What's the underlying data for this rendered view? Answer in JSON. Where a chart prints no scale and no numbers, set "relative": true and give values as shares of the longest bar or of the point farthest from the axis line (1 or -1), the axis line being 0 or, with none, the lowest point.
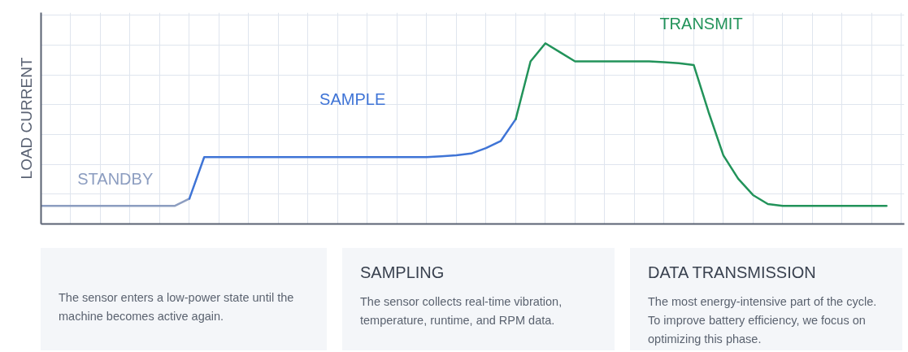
{
  "chart_data": {
    "type": "line",
    "relative": true,
    "ylabel": "LOAD CURRENT",
    "grid": true,
    "categories": [
      null,
      null,
      null,
      null,
      null,
      null,
      null,
      null,
      null,
      null,
      null,
      null,
      null,
      null,
      null,
      null,
      null,
      null,
      null,
      null,
      null,
      null,
      null,
      null,
      null,
      null,
      null,
      null,
      null,
      null,
      null,
      null,
      null,
      null,
      null,
      null,
      null,
      null,
      null,
      null,
      null,
      null,
      null,
      null,
      null,
      null,
      null,
      null,
      null,
      null,
      null,
      null,
      null,
      null,
      null,
      null,
      null,
      null
    ],
    "series": [
      {
        "name": "STANDBY",
        "color": "#8c9dc0",
        "values": [
          0.1,
          0.1,
          0.1,
          0.1,
          0.1,
          0.1,
          0.1,
          0.1,
          0.1,
          0.1,
          0.14,
          null,
          null,
          null,
          null,
          null,
          null,
          null,
          null,
          null,
          null,
          null,
          null,
          null,
          null,
          null,
          null,
          null,
          null,
          null,
          null,
          null,
          null,
          null,
          null,
          null,
          null,
          null,
          null,
          null,
          null,
          null,
          null,
          null,
          null,
          null,
          null,
          null,
          null,
          null,
          null,
          null,
          null,
          null,
          null,
          null,
          null,
          null
        ]
      },
      {
        "name": "SAMPLE",
        "color": "#3f74d6",
        "values": [
          null,
          null,
          null,
          null,
          null,
          null,
          null,
          null,
          null,
          null,
          0.14,
          0.37,
          0.37,
          0.37,
          0.37,
          0.37,
          0.37,
          0.37,
          0.37,
          0.37,
          0.37,
          0.37,
          0.37,
          0.37,
          0.37,
          0.37,
          0.37,
          0.375,
          0.38,
          0.39,
          0.42,
          0.46,
          0.58,
          null,
          null,
          null,
          null,
          null,
          null,
          null,
          null,
          null,
          null,
          null,
          null,
          null,
          null,
          null,
          null,
          null,
          null,
          null,
          null,
          null,
          null,
          null,
          null,
          null
        ]
      },
      {
        "name": "TRANSMIT",
        "color": "#22935a",
        "values": [
          null,
          null,
          null,
          null,
          null,
          null,
          null,
          null,
          null,
          null,
          null,
          null,
          null,
          null,
          null,
          null,
          null,
          null,
          null,
          null,
          null,
          null,
          null,
          null,
          null,
          null,
          null,
          null,
          null,
          null,
          null,
          null,
          0.58,
          0.9,
          1.0,
          0.95,
          0.9,
          0.9,
          0.9,
          0.9,
          0.9,
          0.9,
          0.895,
          0.89,
          0.88,
          0.62,
          0.38,
          0.25,
          0.16,
          0.11,
          0.1,
          0.1,
          0.1,
          0.1,
          0.1,
          0.1,
          0.1,
          0.1
        ]
      }
    ],
    "annotations": [
      "\nThe sensor enters a low-power state until the machine becomes active again.",
      "SAMPLING\nThe sensor collects real-time vibration, temperature, runtime, and RPM data.",
      "DATA TRANSMISSION\nThe most energy-intensive part of the cycle. To improve battery efficiency, we focus on optimizing this phase."
    ]
  }
}
